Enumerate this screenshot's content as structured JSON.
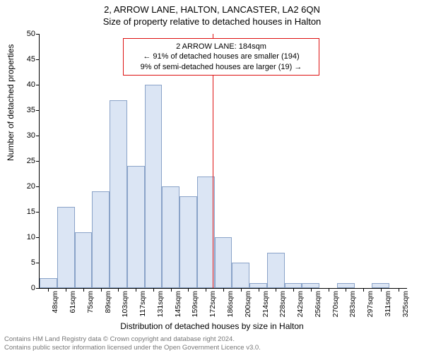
{
  "header": {
    "address": "2, ARROW LANE, HALTON, LANCASTER, LA2 6QN",
    "subtitle": "Size of property relative to detached houses in Halton"
  },
  "chart": {
    "type": "histogram",
    "ylabel": "Number of detached properties",
    "xlabel": "Distribution of detached houses by size in Halton",
    "ylim": [
      0,
      50
    ],
    "ytick_step": 5,
    "xticks": [
      "48sqm",
      "61sqm",
      "75sqm",
      "89sqm",
      "103sqm",
      "117sqm",
      "131sqm",
      "145sqm",
      "159sqm",
      "172sqm",
      "186sqm",
      "200sqm",
      "214sqm",
      "228sqm",
      "242sqm",
      "256sqm",
      "270sqm",
      "283sqm",
      "297sqm",
      "311sqm",
      "325sqm"
    ],
    "bar_values": [
      2,
      16,
      11,
      19,
      37,
      24,
      40,
      20,
      18,
      22,
      10,
      5,
      1,
      7,
      1,
      1,
      0,
      1,
      0,
      1,
      0
    ],
    "bar_color": "#dbe5f4",
    "bar_border": "#8aa3c8",
    "reference": {
      "position_index": 9.9,
      "color": "#d11",
      "annotation": {
        "line1": "2 ARROW LANE: 184sqm",
        "line2": "← 91% of detached houses are smaller (194)",
        "line3": "9% of semi-detached houses are larger (19) →"
      }
    },
    "background_color": "#ffffff",
    "yticks": [
      0,
      5,
      10,
      15,
      20,
      25,
      30,
      35,
      40,
      45,
      50
    ]
  },
  "footer": {
    "line1": "Contains HM Land Registry data © Crown copyright and database right 2024.",
    "line2": "Contains public sector information licensed under the Open Government Licence v3.0."
  }
}
